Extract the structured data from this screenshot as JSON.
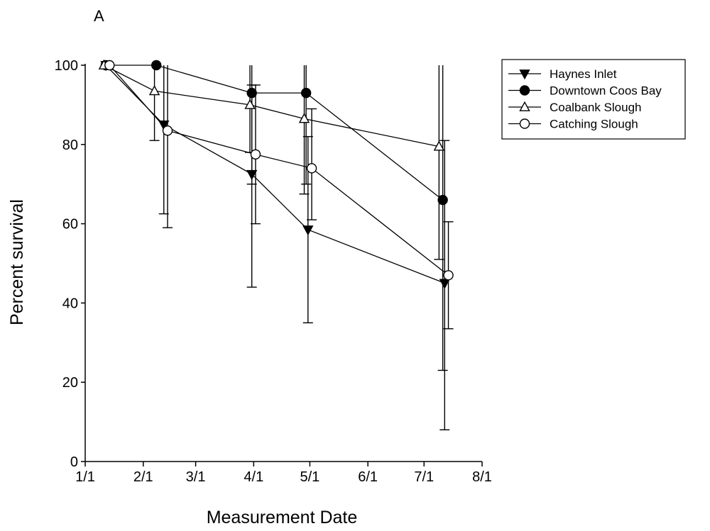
{
  "chart_data": {
    "type": "line",
    "panel_label": "A",
    "title": "",
    "xlabel": "Measurement Date",
    "ylabel": "Percent survival",
    "x_axis": {
      "kind": "date",
      "range": [
        "1/1",
        "8/1"
      ],
      "ticks": [
        "1/1",
        "2/1",
        "3/1",
        "4/1",
        "5/1",
        "6/1",
        "7/1",
        "8/1"
      ]
    },
    "ylim": [
      0,
      100
    ],
    "y_ticks": [
      0,
      20,
      40,
      60,
      80,
      100
    ],
    "grid": false,
    "legend_position": "top-right",
    "series": [
      {
        "name": "Haynes Inlet",
        "marker": "filled-triangle-down",
        "points": [
          {
            "x": "1/12",
            "y": 100
          },
          {
            "x": "2/12",
            "y": 85,
            "err_low": 62.5,
            "err_high": 100
          },
          {
            "x": "3/31",
            "y": 72.5,
            "err_low": 44,
            "err_high": 95
          },
          {
            "x": "4/30",
            "y": 58.5,
            "err_low": 35,
            "err_high": 82
          },
          {
            "x": "7/12",
            "y": 45,
            "err_low": 8,
            "err_high": 81
          }
        ]
      },
      {
        "name": "Downtown Coos Bay",
        "marker": "filled-circle",
        "points": [
          {
            "x": "1/12",
            "y": 100
          },
          {
            "x": "2/8",
            "y": 100
          },
          {
            "x": "3/31",
            "y": 93,
            "err_low": 70,
            "err_high": 100
          },
          {
            "x": "4/29",
            "y": 93,
            "err_low": 70,
            "err_high": 100
          },
          {
            "x": "7/11",
            "y": 66,
            "err_low": 23,
            "err_high": 100
          }
        ]
      },
      {
        "name": "Coalbank Slough",
        "marker": "open-triangle-up",
        "points": [
          {
            "x": "1/11",
            "y": 100
          },
          {
            "x": "2/7",
            "y": 93.5,
            "err_low": 81,
            "err_high": 100
          },
          {
            "x": "3/30",
            "y": 90,
            "err_low": 78,
            "err_high": 100
          },
          {
            "x": "4/28",
            "y": 86.5,
            "err_low": 67.5,
            "err_high": 100
          },
          {
            "x": "7/9",
            "y": 79.5,
            "err_low": 51,
            "err_high": 100
          }
        ]
      },
      {
        "name": "Catching Slough",
        "marker": "open-circle",
        "points": [
          {
            "x": "1/14",
            "y": 100
          },
          {
            "x": "2/14",
            "y": 83.5,
            "err_low": 59,
            "err_high": 100
          },
          {
            "x": "4/2",
            "y": 77.5,
            "err_low": 60,
            "err_high": 95
          },
          {
            "x": "5/2",
            "y": 74,
            "err_low": 61,
            "err_high": 89
          },
          {
            "x": "7/14",
            "y": 47,
            "err_low": 33.5,
            "err_high": 60.5
          }
        ]
      }
    ]
  }
}
